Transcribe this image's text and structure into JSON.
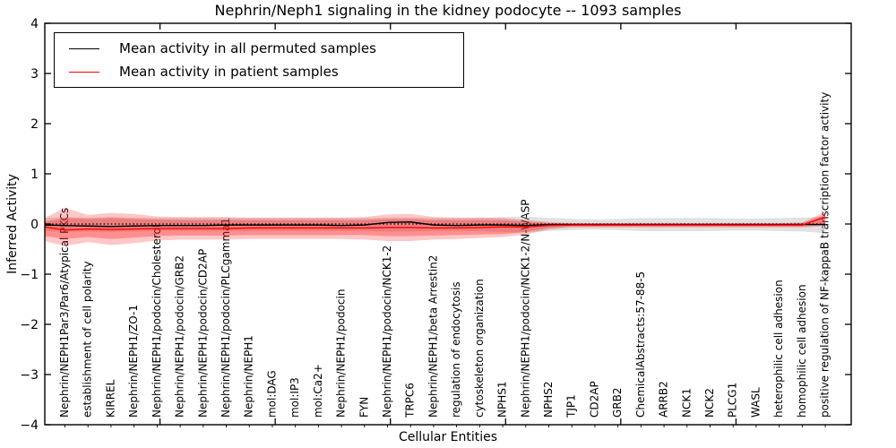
{
  "figure": {
    "title": "Nephrin/Neph1 signaling in the kidney podocyte -- 1093 samples",
    "xlabel": "Cellular Entities",
    "ylabel": "Inferred Activity"
  },
  "legend": {
    "position": "upper left",
    "items": [
      {
        "label": "Mean activity in all permuted samples",
        "color": "#000000"
      },
      {
        "label": "Mean activity in patient samples",
        "color": "#ff0000"
      }
    ]
  },
  "chart_data": {
    "type": "line",
    "title": "Nephrin/Neph1 signaling in the kidney podocyte -- 1093 samples",
    "xlabel": "Cellular Entities",
    "ylabel": "Inferred Activity",
    "sample_count": "1093 samples",
    "ylim": [
      -4,
      4
    ],
    "xlim": [
      0,
      35
    ],
    "grid": false,
    "yticks": [
      4,
      3,
      2,
      1,
      0,
      -1,
      -2,
      -3,
      -4
    ],
    "ytick_labels": [
      "4",
      "3",
      "2",
      "1",
      "0",
      "−1",
      "−2",
      "−3",
      "−4"
    ],
    "x_major_ticks": [
      5,
      10,
      15,
      20,
      25,
      30
    ],
    "zero_line": {
      "y": 0,
      "style": "dotted",
      "color": "#000000"
    },
    "categories": [
      "Nephrin/NEPH1Par3/Par6/Atypical PKCs",
      "establishment of cell polarity",
      "KIRREL",
      "Nephrin/NEPH1/ZO-1",
      "Nephrin/NEPH1/podocin/Cholesterol",
      "Nephrin/NEPH1/podocin/GRB2",
      "Nephrin/NEPH1/podocin/CD2AP",
      "Nephrin/NEPH1/podocin/PLCgamma1",
      "Nephrin/NEPH1",
      "mol:DAG",
      "mol:IP3",
      "mol:Ca2+",
      "Nephrin/NEPH1/podocin",
      "FYN",
      "Nephrin/NEPH1/podocin/NCK1-2",
      "TRPC6",
      "Nephrin/NEPH1/beta Arrestin2",
      "regulation of endocytosis",
      "cytoskeleton organization",
      "NPHS1",
      "Nephrin/NEPH1/podocin/NCK1-2/N-WASP",
      "NPHS2",
      "TJP1",
      "CD2AP",
      "GRB2",
      "ChemicalAbstracts:57-88-5",
      "ARRB2",
      "NCK1",
      "NCK2",
      "PLCG1",
      "WASL",
      "heterophilic cell adhesion",
      "homophilic cell adhesion",
      "positive regulation of NF-kappaB transcription factor activity"
    ],
    "series": [
      {
        "name": "Mean activity in all permuted samples",
        "color": "#000000",
        "style": "solid",
        "edge_start": -0.02,
        "values": [
          -0.03,
          -0.04,
          -0.05,
          -0.04,
          -0.03,
          -0.03,
          -0.03,
          -0.02,
          -0.02,
          -0.02,
          -0.02,
          -0.02,
          -0.03,
          -0.02,
          0.03,
          0.04,
          -0.02,
          -0.03,
          -0.02,
          -0.02,
          -0.03,
          -0.01,
          -0.01,
          -0.01,
          -0.01,
          -0.01,
          -0.01,
          -0.01,
          -0.01,
          -0.01,
          -0.01,
          -0.01,
          -0.01,
          -0.01
        ]
      },
      {
        "name": "Mean activity in patient samples",
        "color": "#ff0000",
        "style": "solid",
        "edge_start": -0.06,
        "values": [
          -0.12,
          -0.1,
          -0.11,
          -0.1,
          -0.09,
          -0.09,
          -0.09,
          -0.09,
          -0.08,
          -0.08,
          -0.08,
          -0.08,
          -0.08,
          -0.08,
          -0.07,
          -0.07,
          -0.08,
          -0.08,
          -0.07,
          -0.06,
          -0.06,
          -0.03,
          -0.02,
          -0.02,
          -0.02,
          -0.02,
          -0.02,
          -0.02,
          -0.02,
          -0.02,
          -0.02,
          -0.02,
          -0.02,
          0.14
        ]
      }
    ],
    "bands": [
      {
        "name": "permuted-samples-range",
        "color": "#a8a8a8",
        "opacity": 0.35,
        "edge_start": [
          0.12,
          -0.14
        ],
        "upper": [
          0.14,
          0.13,
          0.14,
          0.13,
          0.12,
          0.12,
          0.12,
          0.12,
          0.12,
          0.12,
          0.12,
          0.12,
          0.12,
          0.12,
          0.13,
          0.13,
          0.12,
          0.12,
          0.12,
          0.14,
          0.15,
          0.12,
          0.1,
          0.09,
          0.1,
          0.12,
          0.12,
          0.12,
          0.12,
          0.11,
          0.11,
          0.12,
          0.13,
          0.15
        ],
        "lower": [
          -0.16,
          -0.15,
          -0.16,
          -0.15,
          -0.14,
          -0.14,
          -0.14,
          -0.14,
          -0.14,
          -0.14,
          -0.14,
          -0.14,
          -0.14,
          -0.14,
          -0.15,
          -0.15,
          -0.14,
          -0.14,
          -0.14,
          -0.16,
          -0.17,
          -0.14,
          -0.12,
          -0.11,
          -0.12,
          -0.14,
          -0.14,
          -0.14,
          -0.14,
          -0.13,
          -0.13,
          -0.14,
          -0.15,
          -0.18
        ]
      },
      {
        "name": "patient-samples-range-outer",
        "color": "#ff0000",
        "opacity": 0.22,
        "edge_start": [
          0.12,
          -0.34
        ],
        "upper": [
          0.32,
          0.18,
          0.22,
          0.2,
          0.15,
          0.14,
          0.14,
          0.14,
          0.13,
          0.13,
          0.13,
          0.13,
          0.13,
          0.14,
          0.19,
          0.2,
          0.14,
          0.13,
          0.13,
          0.12,
          0.08,
          0.04,
          0.02,
          0.02,
          0.02,
          0.02,
          0.02,
          0.02,
          0.02,
          0.02,
          0.02,
          0.02,
          0.03,
          0.24
        ],
        "lower": [
          -0.44,
          -0.36,
          -0.42,
          -0.38,
          -0.33,
          -0.31,
          -0.31,
          -0.31,
          -0.3,
          -0.3,
          -0.3,
          -0.3,
          -0.3,
          -0.31,
          -0.34,
          -0.34,
          -0.31,
          -0.3,
          -0.28,
          -0.26,
          -0.21,
          -0.11,
          -0.07,
          -0.07,
          -0.07,
          -0.07,
          -0.07,
          -0.07,
          -0.07,
          -0.07,
          -0.07,
          -0.07,
          -0.07,
          -0.04
        ]
      },
      {
        "name": "patient-samples-range-inner",
        "color": "#ff0000",
        "opacity": 0.28,
        "edge_start": [
          0.05,
          -0.24
        ],
        "upper": [
          0.12,
          0.1,
          0.12,
          0.1,
          0.09,
          0.08,
          0.08,
          0.08,
          0.08,
          0.08,
          0.08,
          0.08,
          0.08,
          0.08,
          0.1,
          0.1,
          0.08,
          0.08,
          0.08,
          0.08,
          0.05,
          0.02,
          0.01,
          0.01,
          0.01,
          0.01,
          0.01,
          0.01,
          0.01,
          0.01,
          0.01,
          0.01,
          0.02,
          0.18
        ],
        "lower": [
          -0.3,
          -0.26,
          -0.3,
          -0.27,
          -0.24,
          -0.23,
          -0.23,
          -0.23,
          -0.22,
          -0.22,
          -0.22,
          -0.22,
          -0.22,
          -0.22,
          -0.24,
          -0.24,
          -0.23,
          -0.22,
          -0.21,
          -0.2,
          -0.16,
          -0.08,
          -0.05,
          -0.05,
          -0.05,
          -0.05,
          -0.05,
          -0.05,
          -0.05,
          -0.05,
          -0.05,
          -0.05,
          -0.05,
          -0.02
        ]
      }
    ],
    "legend_position": "upper left"
  }
}
